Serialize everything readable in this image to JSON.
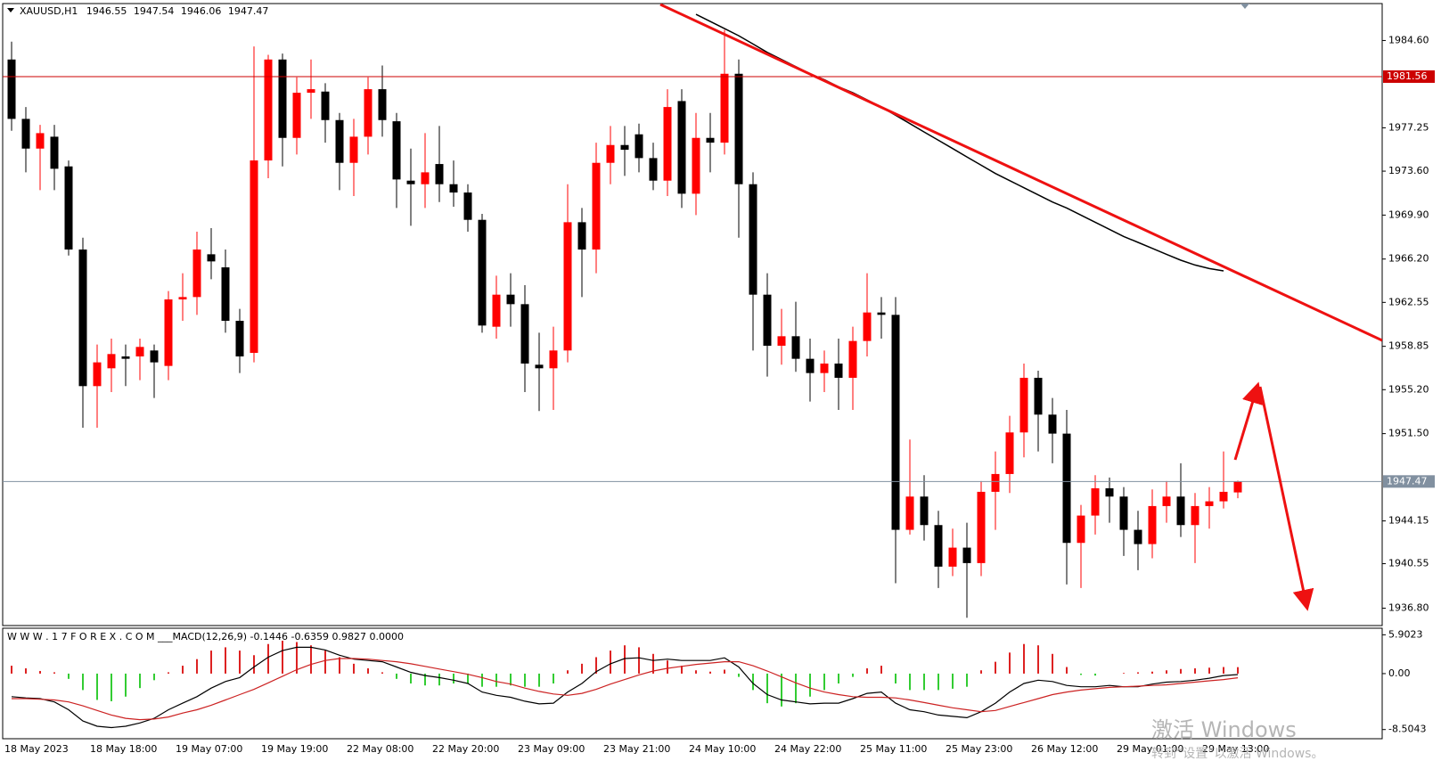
{
  "chart_data": [
    {
      "type": "candlestick",
      "header": {
        "symbol": "XAUUSD,H1",
        "open": 1946.55,
        "high": 1947.54,
        "low": 1946.06,
        "close": 1947.47
      },
      "categories": [
        "18 May 2023",
        null,
        null,
        null,
        null,
        null,
        "18 May 18:00",
        null,
        null,
        null,
        null,
        null,
        "19 May 07:00",
        null,
        null,
        null,
        null,
        null,
        "19 May 19:00",
        null,
        null,
        null,
        null,
        null,
        "22 May 08:00",
        null,
        null,
        null,
        null,
        null,
        "22 May 20:00",
        null,
        null,
        null,
        null,
        null,
        "23 May 09:00",
        null,
        null,
        null,
        null,
        null,
        "23 May 21:00",
        null,
        null,
        null,
        null,
        null,
        "24 May 10:00",
        null,
        null,
        null,
        null,
        null,
        "24 May 22:00",
        null,
        null,
        null,
        null,
        null,
        "25 May 11:00",
        null,
        null,
        null,
        null,
        null,
        "25 May 23:00",
        null,
        null,
        null,
        null,
        null,
        "26 May 12:00",
        null,
        null,
        null,
        null,
        null,
        "29 May 01:00",
        null,
        null,
        null,
        null,
        null,
        "29 May 13:00",
        null,
        null
      ],
      "open": [
        1983,
        1978,
        1975.5,
        1976.5,
        1974,
        1967,
        1955.5,
        1957,
        1958,
        1958,
        1958.5,
        1957.2,
        1962.8,
        1963,
        1966.6,
        1965.5,
        1961,
        1958.3,
        1974.5,
        1983,
        1976.4,
        1980.2,
        1980.3,
        1977.9,
        1974.3,
        1976.5,
        1980.5,
        1977.8,
        1972.8,
        1972.5,
        1974.2,
        1972.5,
        1971.8,
        1969.5,
        1960.5,
        1963.2,
        1962.4,
        1957.3,
        1957,
        1958.5,
        1969.3,
        1967,
        1974.3,
        1975.8,
        1976.7,
        1974.7,
        1972.8,
        1979.5,
        1971.7,
        1976.4,
        1976,
        1981.8,
        1972.5,
        1963.2,
        1958.9,
        1959.7,
        1957.8,
        1956.6,
        1957.4,
        1956.2,
        1959.3,
        1961.7,
        1961.5,
        1943.4,
        1946.2,
        1943.8,
        1940.3,
        1941.9,
        1940.6,
        1946.6,
        1948.1,
        1951.6,
        1956.2,
        1953.1,
        1951.5,
        1942.3,
        1944.6,
        1946.9,
        1946.2,
        1943.4,
        1942.2,
        1945.4,
        1946.2,
        1943.8,
        1945.4,
        1945.8,
        1946.55
      ],
      "high": [
        1984.5,
        1979,
        1977.5,
        1977.5,
        1974.5,
        1968,
        1959,
        1959.5,
        1959,
        1959.5,
        1959,
        1963.5,
        1965,
        1968.5,
        1968.8,
        1967,
        1962,
        1984.1,
        1983.4,
        1983.5,
        1981.5,
        1983,
        1981,
        1978.5,
        1978,
        1981.5,
        1982.5,
        1978.5,
        1975.5,
        1976.8,
        1977.4,
        1974.5,
        1972.5,
        1970,
        1964.8,
        1965,
        1964,
        1960,
        1960.5,
        1972.5,
        1970.5,
        1976,
        1977.4,
        1977.4,
        1977.6,
        1976,
        1980.5,
        1980.5,
        1978.5,
        1978.5,
        1985.5,
        1983,
        1973.5,
        1965,
        1962,
        1962.6,
        1959.5,
        1958.5,
        1959.5,
        1960.5,
        1965,
        1963,
        1963,
        1951,
        1948,
        1945,
        1943.5,
        1944,
        1947.5,
        1950,
        1953,
        1957.4,
        1956.8,
        1954.5,
        1953.5,
        1945.5,
        1948,
        1947.8,
        1947,
        1945,
        1946.8,
        1947.5,
        1949,
        1946.5,
        1947,
        1950,
        1947.54
      ],
      "low": [
        1977,
        1973.5,
        1972,
        1972,
        1966.5,
        1952,
        1952,
        1955,
        1955.5,
        1956,
        1954.5,
        1956,
        1961,
        1961.5,
        1964.5,
        1960,
        1956.6,
        1957.5,
        1973,
        1974,
        1975,
        1978,
        1976,
        1972,
        1971.5,
        1975,
        1976.5,
        1970.5,
        1969,
        1970.5,
        1971,
        1970.6,
        1968.5,
        1960,
        1959.5,
        1960.5,
        1955,
        1953.4,
        1953.5,
        1957.5,
        1963,
        1965,
        1972.5,
        1973.2,
        1973.5,
        1972,
        1971.5,
        1970.5,
        1969.9,
        1973.5,
        1975,
        1968,
        1958.5,
        1956.3,
        1957.3,
        1956.7,
        1954.2,
        1955,
        1953.5,
        1953.5,
        1958,
        1959.5,
        1938.9,
        1943,
        1942.5,
        1938.5,
        1939.5,
        1936,
        1939.5,
        1943.4,
        1946.5,
        1949.5,
        1950,
        1949,
        1938.8,
        1938.5,
        1943,
        1944,
        1941.2,
        1940,
        1941,
        1944,
        1942.8,
        1940.6,
        1943.5,
        1945.2,
        1946.06
      ],
      "close": [
        1978,
        1975.5,
        1976.8,
        1973.8,
        1967,
        1955.5,
        1957.5,
        1958.2,
        1957.8,
        1958.8,
        1957.5,
        1962.8,
        1963,
        1967,
        1966,
        1961,
        1958,
        1974.5,
        1983,
        1976.4,
        1980.2,
        1980.5,
        1977.9,
        1974.3,
        1976.5,
        1980.5,
        1977.9,
        1972.9,
        1972.5,
        1973.5,
        1972.5,
        1971.8,
        1969.5,
        1960.6,
        1963.2,
        1962.4,
        1957.4,
        1957,
        1958.5,
        1969.3,
        1967,
        1974.3,
        1975.8,
        1975.4,
        1974.7,
        1972.8,
        1979,
        1971.7,
        1976.4,
        1976,
        1981.8,
        1972.5,
        1963.2,
        1958.9,
        1959.7,
        1957.8,
        1956.6,
        1957.4,
        1956.2,
        1959.3,
        1961.7,
        1961.5,
        1943.4,
        1946.2,
        1943.8,
        1940.3,
        1941.9,
        1940.6,
        1946.6,
        1948.1,
        1951.6,
        1956.2,
        1953.1,
        1951.5,
        1942.3,
        1944.6,
        1946.9,
        1946.2,
        1943.4,
        1942.2,
        1945.4,
        1946.2,
        1943.8,
        1945.4,
        1945.8,
        1946.6,
        1947.47
      ],
      "up_color": "#ff0000",
      "down_color": "#000000",
      "ma": {
        "color": "#000000",
        "values": [
          null,
          null,
          null,
          null,
          null,
          null,
          null,
          null,
          null,
          null,
          null,
          null,
          null,
          null,
          null,
          null,
          null,
          null,
          null,
          null,
          null,
          null,
          null,
          null,
          null,
          null,
          null,
          null,
          null,
          null,
          null,
          null,
          null,
          null,
          null,
          null,
          null,
          null,
          null,
          null,
          null,
          null,
          null,
          null,
          null,
          null,
          null,
          null,
          1986.8,
          1986.2,
          1985.6,
          1985,
          1984.3,
          1983.6,
          1983,
          1982.4,
          1981.8,
          1981.3,
          1980.7,
          1980.2,
          1979.6,
          1979,
          1978.3,
          1977.6,
          1976.9,
          1976.2,
          1975.5,
          1974.8,
          1974.1,
          1973.4,
          1972.8,
          1972.2,
          1971.6,
          1971,
          1970.5,
          1969.9,
          1969.3,
          1968.7,
          1968.1,
          1967.6,
          1967.1,
          1966.6,
          1966.1,
          1965.7,
          1965.4,
          1965.2,
          null
        ]
      },
      "hlines": [
        {
          "value": 1981.56,
          "color": "#cc0000"
        },
        {
          "value": 1947.47,
          "color": "#8190a0"
        }
      ],
      "ylim": [
        1935.34,
        1987.71
      ],
      "yticks": [
        {
          "value": 1984.6,
          "label": "1984.60"
        },
        1977.25,
        {
          "value": 1973.6,
          "label": "1973.60"
        },
        {
          "value": 1969.9,
          "label": "1969.90"
        },
        {
          "value": 1966.2,
          "label": "1966.20"
        },
        1962.55,
        1958.85,
        {
          "value": 1955.2,
          "label": "1955.20"
        },
        {
          "value": 1951.5,
          "label": "1951.50"
        },
        1944.15,
        1940.55,
        {
          "value": 1936.8,
          "label": "1936.80"
        }
      ],
      "grid": false
    },
    {
      "type": "macd",
      "title": "W W W . 1 7 F O R E X . C O M ___MACD(12,26,9) -0.1446 -0.6359 0.9827 0.0000",
      "values": [
        1.2,
        0.8,
        0.4,
        0.2,
        -0.8,
        -2.5,
        -4,
        -4.2,
        -3.5,
        -2.2,
        -1,
        0.2,
        1.2,
        2.2,
        3.5,
        4,
        3.5,
        2.8,
        4.5,
        5,
        4.8,
        4.3,
        3.5,
        2.5,
        1.5,
        0.8,
        0.2,
        -0.8,
        -1.5,
        -1.8,
        -1.8,
        -1.5,
        -1.5,
        -2,
        -2,
        -1.8,
        -2,
        -2,
        -1.5,
        0.5,
        1.5,
        2.5,
        3.5,
        4.3,
        4,
        3,
        2,
        1.2,
        0.5,
        0.3,
        0.6,
        -0.5,
        -2.5,
        -4.5,
        -5,
        -4.5,
        -3.5,
        -2.5,
        -1.5,
        -0.5,
        0.8,
        1.2,
        -1.5,
        -2.5,
        -2.5,
        -2.5,
        -2.3,
        -2,
        0.5,
        1.8,
        3.2,
        4.5,
        4.3,
        3,
        1,
        -0.2,
        -0.3,
        0,
        0.1,
        0.2,
        0.3,
        0.5,
        0.7,
        0.8,
        0.9,
        1,
        0.9827
      ],
      "pos_color": "#dd2222",
      "neg_color": "#33cc33",
      "series": [
        {
          "color": "#000000",
          "values": [
            -3.5,
            -3.7,
            -3.8,
            -4.3,
            -5.5,
            -7.2,
            -8,
            -8.2,
            -8,
            -7.5,
            -6.8,
            -5.5,
            -4.5,
            -3.5,
            -2.2,
            -1.2,
            -0.6,
            1,
            2.5,
            3.5,
            4,
            4,
            3.6,
            2.8,
            2.2,
            2,
            1.8,
            1,
            0.2,
            -0.3,
            -0.6,
            -1,
            -1.5,
            -2.8,
            -3.3,
            -3.6,
            -4.2,
            -4.6,
            -4.5,
            -2.8,
            -1.5,
            0.3,
            1.5,
            2.3,
            2.4,
            2,
            2.2,
            2,
            2,
            2,
            2.4,
            1,
            -1.5,
            -3.2,
            -4,
            -4.3,
            -4.6,
            -4.5,
            -4.5,
            -3.8,
            -3,
            -2.8,
            -4.5,
            -5.5,
            -5.8,
            -6.3,
            -6.5,
            -6.7,
            -5.8,
            -4.5,
            -2.8,
            -1.5,
            -1,
            -1.2,
            -1.8,
            -2,
            -2,
            -1.8,
            -2,
            -2,
            -1.6,
            -1.3,
            -1.2,
            -1,
            -0.7,
            -0.3,
            -0.1446
          ]
        },
        {
          "color": "#cc2222",
          "values": [
            -3.8,
            -3.8,
            -3.9,
            -4,
            -4.3,
            -4.9,
            -5.6,
            -6.3,
            -6.8,
            -7,
            -6.9,
            -6.6,
            -6,
            -5.5,
            -4.8,
            -4,
            -3.2,
            -2.4,
            -1.4,
            -0.4,
            0.6,
            1.4,
            2,
            2.3,
            2.3,
            2.2,
            2,
            1.8,
            1.5,
            1.1,
            0.7,
            0.3,
            -0.1,
            -0.6,
            -1.2,
            -1.6,
            -2.2,
            -2.7,
            -3.1,
            -3.3,
            -3,
            -2.4,
            -1.6,
            -0.9,
            -0.2,
            0.4,
            0.8,
            1.1,
            1.4,
            1.6,
            1.8,
            1.8,
            1.2,
            0.4,
            -0.5,
            -1.4,
            -2.2,
            -2.8,
            -3.2,
            -3.5,
            -3.6,
            -3.6,
            -3.7,
            -4,
            -4.4,
            -4.8,
            -5.2,
            -5.5,
            -5.8,
            -5.6,
            -5,
            -4.4,
            -3.8,
            -3.2,
            -2.8,
            -2.5,
            -2.3,
            -2.1,
            -2,
            -1.9,
            -1.8,
            -1.7,
            -1.5,
            -1.3,
            -1.1,
            -0.9,
            -0.6359
          ]
        }
      ],
      "ylim": [
        -9.9,
        6.9
      ],
      "yticks": [
        5.9023,
        {
          "value": 0,
          "label": "0.00"
        },
        -8.5043
      ]
    }
  ],
  "watermark": {
    "title": "激活 Windows",
    "text": "转到“设置”以激活 Windows。"
  }
}
